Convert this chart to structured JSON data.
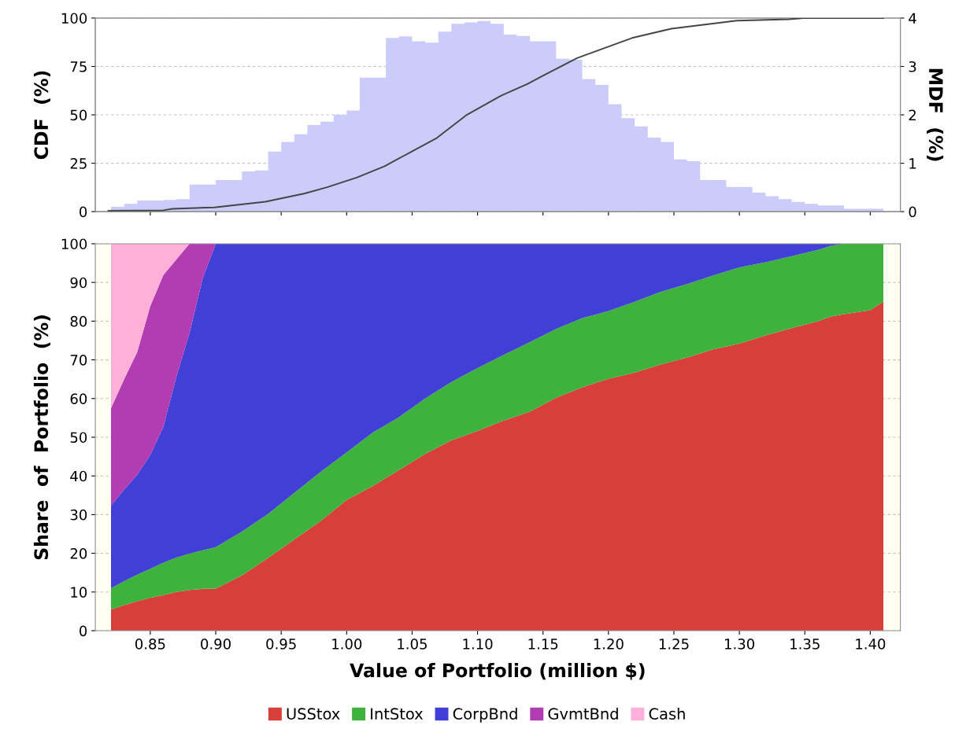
{
  "chart_data": [
    {
      "type": "histogram",
      "ylabel": "CDF  (%)",
      "y2label": "MDF  (%)",
      "bins": [
        0.82,
        0.83,
        0.84,
        0.85,
        0.86,
        0.87,
        0.88,
        0.89,
        0.9,
        0.91,
        0.92,
        0.93,
        0.94,
        0.95,
        0.96,
        0.97,
        0.98,
        0.99,
        1.0,
        1.01,
        1.02,
        1.03,
        1.04,
        1.05,
        1.06,
        1.07,
        1.08,
        1.09,
        1.1,
        1.11,
        1.12,
        1.13,
        1.14,
        1.15,
        1.16,
        1.17,
        1.18,
        1.19,
        1.2,
        1.21,
        1.22,
        1.23,
        1.24,
        1.25,
        1.26,
        1.27,
        1.28,
        1.29,
        1.3,
        1.31,
        1.32,
        1.33,
        1.34,
        1.35,
        1.36,
        1.37,
        1.38,
        1.39,
        1.4,
        1.41
      ],
      "series": [
        {
          "type": "histogram",
          "axis": "y2",
          "color": "#ccccfa",
          "values": [
            0.1,
            0.16,
            0.23,
            0.23,
            0.24,
            0.26,
            0.56,
            0.56,
            0.65,
            0.65,
            0.83,
            0.85,
            1.24,
            1.44,
            1.6,
            1.79,
            1.86,
            2.0,
            2.09,
            2.77,
            2.77,
            3.59,
            3.62,
            3.52,
            3.49,
            3.72,
            3.88,
            3.91,
            3.94,
            3.88,
            3.66,
            3.63,
            3.52,
            3.52,
            3.16,
            3.14,
            2.74,
            2.62,
            2.22,
            1.93,
            1.76,
            1.53,
            1.44,
            1.08,
            1.04,
            0.65,
            0.65,
            0.51,
            0.51,
            0.39,
            0.32,
            0.26,
            0.2,
            0.16,
            0.13,
            0.13,
            0.06,
            0.06,
            0.06
          ]
        },
        {
          "type": "line",
          "color": "#454545",
          "x": [
            0.818,
            0.86,
            0.867,
            0.899,
            0.938,
            0.968,
            0.985,
            1.008,
            1.029,
            1.049,
            1.069,
            1.092,
            1.118,
            1.138,
            1.149,
            1.176,
            1.218,
            1.248,
            1.298,
            1.338,
            1.349,
            1.41
          ],
          "values": [
            0.5,
            0.7,
            1.5,
            2.2,
            5.1,
            9.4,
            12.6,
            17.7,
            23.5,
            30.8,
            38.1,
            50.1,
            59.9,
            65.9,
            69.9,
            79.3,
            89.7,
            94.5,
            98.7,
            99.4,
            100,
            100
          ]
        }
      ],
      "xlim": [
        0.808,
        1.423
      ],
      "xticks": [
        {
          "value": 0.85,
          "label": null
        },
        {
          "value": 0.9,
          "label": null
        },
        {
          "value": 0.95,
          "label": null
        },
        {
          "value": 1.0,
          "label": null
        },
        {
          "value": 1.05,
          "label": null
        },
        {
          "value": 1.1,
          "label": null
        },
        {
          "value": 1.15,
          "label": null
        },
        {
          "value": 1.2,
          "label": null
        },
        {
          "value": 1.25,
          "label": null
        },
        {
          "value": 1.3,
          "label": null
        },
        {
          "value": 1.35,
          "label": null
        },
        {
          "value": 1.4,
          "label": null
        }
      ],
      "ylim": [
        0,
        100
      ],
      "yticks": [
        0,
        25,
        50,
        75,
        100
      ],
      "y2lim": [
        0,
        4
      ],
      "y2ticks": [
        0,
        1,
        2,
        3,
        4
      ],
      "tick_labels": "y",
      "grid": true
    },
    {
      "type": "area",
      "stacked": true,
      "xlabel": "Value of Portfolio (million $)",
      "ylabel": "Share  of  Portfolio  (%)",
      "x": [
        0.82,
        0.83,
        0.84,
        0.85,
        0.86,
        0.87,
        0.88,
        0.89,
        0.9,
        0.92,
        0.94,
        0.96,
        0.98,
        1.0,
        1.02,
        1.04,
        1.06,
        1.08,
        1.1,
        1.12,
        1.14,
        1.16,
        1.18,
        1.2,
        1.22,
        1.24,
        1.26,
        1.28,
        1.3,
        1.32,
        1.34,
        1.36,
        1.37,
        1.38,
        1.4,
        1.41
      ],
      "series": [
        {
          "name": "USStox",
          "color": "#d93f3a",
          "values": [
            5.5,
            6.6,
            7.6,
            8.5,
            9.2,
            10.0,
            10.5,
            10.8,
            10.9,
            14.3,
            18.8,
            23.6,
            28.3,
            33.8,
            37.4,
            41.5,
            45.7,
            49.2,
            51.6,
            54.3,
            56.6,
            60.2,
            62.9,
            65.1,
            66.7,
            68.8,
            70.6,
            72.7,
            74.2,
            76.3,
            78.2,
            80.0,
            81.2,
            81.8,
            82.8,
            85.0
          ]
        },
        {
          "name": "IntStox",
          "color": "#3eb23c",
          "values": [
            5.5,
            6.2,
            6.9,
            7.5,
            8.4,
            8.9,
            9.4,
            10.0,
            10.7,
            11.3,
            11.4,
            12.0,
            12.7,
            12.3,
            13.8,
            13.7,
            14.3,
            15.1,
            16.3,
            17.0,
            18.0,
            17.8,
            17.9,
            17.5,
            18.3,
            18.8,
            19.0,
            19.1,
            19.7,
            18.9,
            18.6,
            18.4,
            18.3,
            18.2,
            17.2,
            15.0
          ]
        },
        {
          "name": "CorpBnd",
          "color": "#4040d6",
          "values": [
            21.3,
            23.7,
            25.8,
            29.4,
            35.1,
            46.8,
            57.1,
            70.2,
            78.4,
            74.4,
            69.8,
            64.4,
            59.0,
            53.9,
            48.8,
            44.8,
            40.0,
            35.7,
            32.1,
            28.7,
            25.4,
            22.0,
            19.2,
            17.4,
            15.0,
            12.4,
            10.4,
            8.2,
            6.1,
            4.8,
            3.2,
            1.6,
            0.5,
            0,
            0,
            0
          ]
        },
        {
          "name": "GvmtBnd",
          "color": "#b23cb2",
          "values": [
            25.2,
            28.5,
            31.7,
            38.5,
            39.2,
            30.3,
            23.0,
            9.0,
            0,
            0,
            0,
            0,
            0,
            0,
            0,
            0,
            0,
            0,
            0,
            0,
            0,
            0,
            0,
            0,
            0,
            0,
            0,
            0,
            0,
            0,
            0,
            0,
            0,
            0,
            0,
            0
          ]
        },
        {
          "name": "Cash",
          "color": "#ffb0d8",
          "values": [
            42.5,
            35.0,
            28.0,
            16.1,
            8.1,
            4.0,
            0,
            0,
            0,
            0,
            0,
            0,
            0,
            0,
            0,
            0,
            0,
            0,
            0,
            0,
            0,
            0,
            0,
            0,
            0,
            0,
            0,
            0,
            0,
            0,
            0,
            0,
            0,
            0,
            0,
            0
          ]
        }
      ],
      "xlim": [
        0.808,
        1.423
      ],
      "xticks": [
        {
          "value": 0.85,
          "label": "0.85"
        },
        {
          "value": 0.9,
          "label": "0.90"
        },
        {
          "value": 0.95,
          "label": "0.95"
        },
        {
          "value": 1.0,
          "label": "1.00"
        },
        {
          "value": 1.05,
          "label": "1.05"
        },
        {
          "value": 1.1,
          "label": "1.10"
        },
        {
          "value": 1.15,
          "label": "1.15"
        },
        {
          "value": 1.2,
          "label": "1.20"
        },
        {
          "value": 1.25,
          "label": "1.25"
        },
        {
          "value": 1.3,
          "label": "1.30"
        },
        {
          "value": 1.35,
          "label": "1.35"
        },
        {
          "value": 1.4,
          "label": "1.40"
        }
      ],
      "ylim": [
        0,
        100
      ],
      "yticks": [
        0,
        10,
        20,
        30,
        40,
        50,
        60,
        70,
        80,
        90,
        100
      ],
      "grid": true,
      "legend": "bottom"
    }
  ]
}
